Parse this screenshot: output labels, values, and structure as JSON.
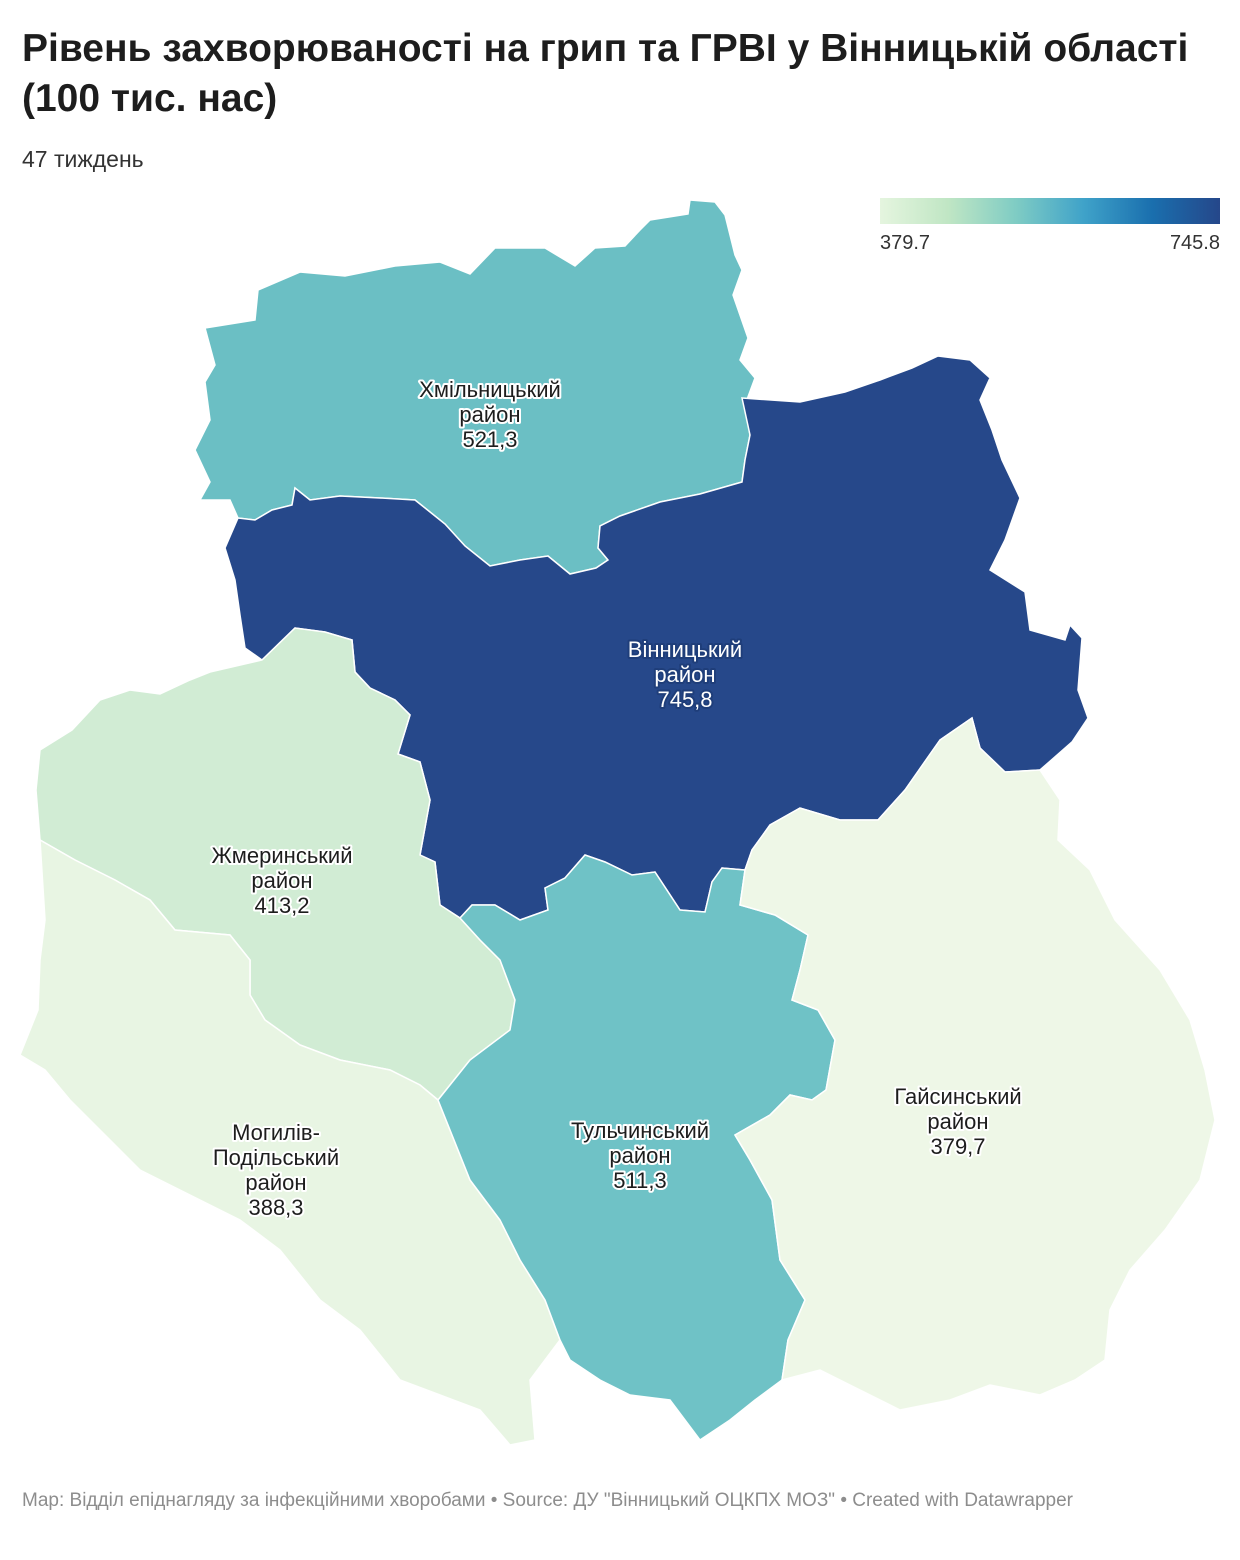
{
  "title": "Рівень захворюваності на грип та ГРВІ у Вінницькій області (100 тис. нас)",
  "subtitle": "47 тиждень",
  "legend": {
    "min_label": "379.7",
    "max_label": "745.8",
    "colors": [
      "#e5f5df",
      "#c0e6c4",
      "#7fccc4",
      "#3fa2c9",
      "#1a6fae",
      "#25478a"
    ]
  },
  "regions": [
    {
      "id": "khmilnytskyi",
      "name_line1": "Хмільницький",
      "name_line2": "район",
      "value": 521.3,
      "value_label": "521,3",
      "color": "#6bbfc4"
    },
    {
      "id": "vinnytskyi",
      "name_line1": "Вінницький",
      "name_line2": "район",
      "value": 745.8,
      "value_label": "745,8",
      "color": "#26488a"
    },
    {
      "id": "zhmerynskyi",
      "name_line1": "Жмеринський",
      "name_line2": "район",
      "value": 413.2,
      "value_label": "413,2",
      "color": "#d1ecd4"
    },
    {
      "id": "mohyliv",
      "name_line1": "Могилів-",
      "name_line2": "Подільський",
      "name_line3": "район",
      "value": 388.3,
      "value_label": "388,3",
      "color": "#e8f5e3"
    },
    {
      "id": "tulchynskyi",
      "name_line1": "Тульчинський",
      "name_line2": "район",
      "value": 511.3,
      "value_label": "511,3",
      "color": "#6fc2c6"
    },
    {
      "id": "haisynskyi",
      "name_line1": "Гайсинський",
      "name_line2": "район",
      "value": 379.7,
      "value_label": "379,7",
      "color": "#eef7e7"
    }
  ],
  "footer": "Map: Відділ епіднагляду за інфекційними хворобами  • Source: ДУ \"Вінницький ОЦКПХ МОЗ\" • Created with Datawrapper"
}
